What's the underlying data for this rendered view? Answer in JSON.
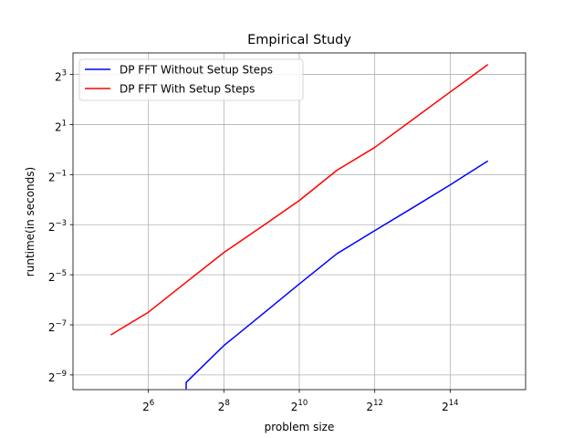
{
  "chart_data": {
    "type": "line",
    "title": "Empirical Study",
    "xlabel": "problem size",
    "ylabel": "runtime(in seconds)",
    "x_scale": "log2",
    "y_scale": "log2",
    "xlim": [
      16,
      65536
    ],
    "ylim": [
      0.0013,
      14.5
    ],
    "grid": true,
    "legend_position": "top-left",
    "x": [
      32,
      64,
      128,
      256,
      512,
      1024,
      2048,
      4096,
      8192,
      16384,
      32768
    ],
    "x_ticks": [
      64,
      256,
      1024,
      4096,
      16384
    ],
    "x_tick_labels": [
      {
        "base": "2",
        "exp": "6"
      },
      {
        "base": "2",
        "exp": "8"
      },
      {
        "base": "2",
        "exp": "10"
      },
      {
        "base": "2",
        "exp": "12"
      },
      {
        "base": "2",
        "exp": "14"
      }
    ],
    "y_ticks": [
      0.001953125,
      0.0078125,
      0.03125,
      0.125,
      0.5,
      2,
      8
    ],
    "y_tick_labels": [
      {
        "base": "2",
        "exp": "−9"
      },
      {
        "base": "2",
        "exp": "−7"
      },
      {
        "base": "2",
        "exp": "−5"
      },
      {
        "base": "2",
        "exp": "−3"
      },
      {
        "base": "2",
        "exp": "−1"
      },
      {
        "base": "2",
        "exp": "1"
      },
      {
        "base": "2",
        "exp": "3"
      }
    ],
    "series": [
      {
        "name": "DP FFT Without Setup Steps",
        "color": "#0000ff",
        "x": [
          128,
          128,
          256,
          512,
          1024,
          2048,
          4096,
          8192,
          16384,
          32768
        ],
        "values": [
          0.00132,
          0.00159,
          0.0044,
          0.0103,
          0.0242,
          0.0561,
          0.106,
          0.199,
          0.376,
          0.73
        ]
      },
      {
        "name": "DP FFT With Setup Steps",
        "color": "#ff0000",
        "x": [
          32,
          64,
          128,
          256,
          512,
          1024,
          2048,
          4096,
          8192,
          16384,
          32768
        ],
        "values": [
          0.0059,
          0.0111,
          0.0254,
          0.0578,
          0.118,
          0.244,
          0.565,
          1.06,
          2.28,
          4.92,
          10.5
        ]
      }
    ]
  }
}
